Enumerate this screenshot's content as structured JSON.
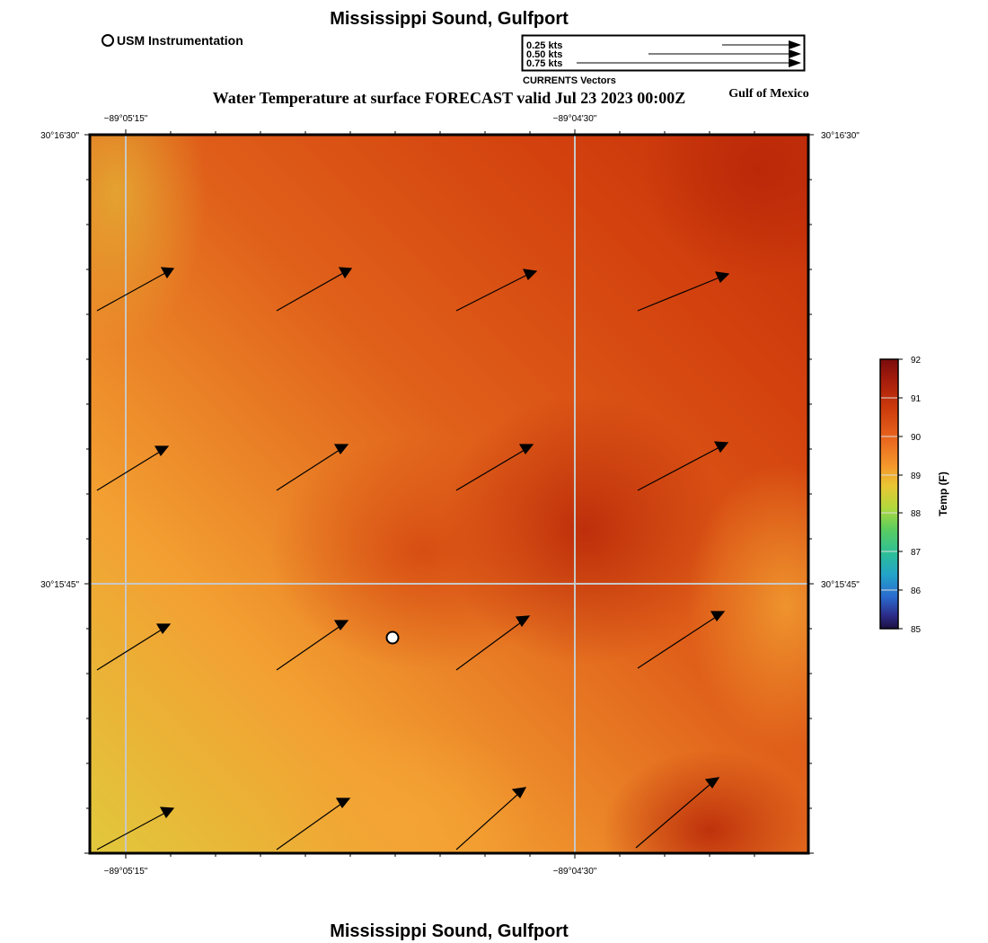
{
  "map": {
    "title": "Mississippi Sound, Gulfport",
    "bottom_title": "Mississippi Sound, Gulfport",
    "forecast_title": "Water Temperature at surface FORECAST valid Jul 23 2023 00:00Z",
    "region_label": "Gulf of Mexico",
    "usm_legend_label": "USM Instrumentation",
    "lon_ticks": [
      "−89°05'15\"",
      "−89°04'30\""
    ],
    "lat_ticks": [
      "30°16'30\"",
      "30°15'45\""
    ]
  },
  "vector_legend": {
    "title": "CURRENTS Vectors",
    "items": [
      "0.25 kts",
      "0.50 kts",
      "0.75 kts"
    ]
  },
  "colorbar": {
    "label": "Temp (F)",
    "ticks": [
      "92",
      "91",
      "90",
      "89",
      "88",
      "87",
      "86",
      "85"
    ],
    "stops": [
      "#7a0c0c",
      "#c4300a",
      "#e9681f",
      "#f5a030",
      "#ddd430",
      "#9ad742",
      "#3cc77a",
      "#23aab8",
      "#2a6cd0",
      "#2c2c7a",
      "#1c1040"
    ]
  },
  "colors": {
    "field_light": "#e1c83c",
    "field_warm": "#f3a032",
    "field_hot": "#d2400e",
    "field_hottest": "#c02808",
    "grid_line": "#c8c8c8",
    "arrow": "#000000"
  },
  "station": {
    "name": "USM Instrumentation",
    "marker": "white-circle"
  }
}
